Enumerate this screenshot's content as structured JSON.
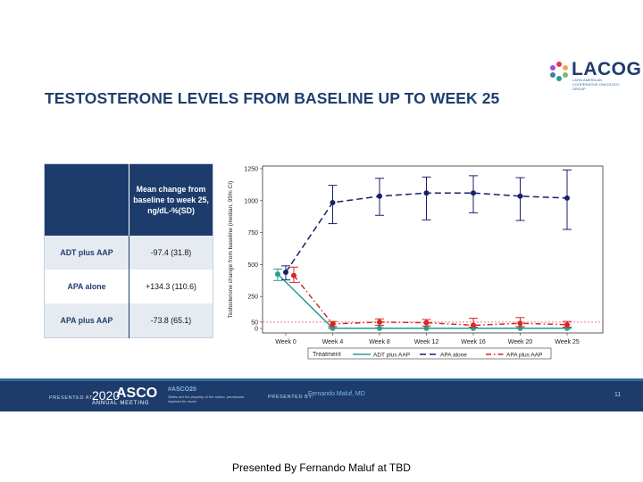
{
  "logo": {
    "text": "LACOG",
    "sub": "LATIN AMERICAN COOPERATIVE ONCOLOGY GROUP"
  },
  "slide_title": "TESTOSTERONE LEVELS FROM BASELINE UP TO WEEK 25",
  "summary_table": {
    "header": "Mean change from baseline to week 25, ng/dL-%(SD)",
    "rows": [
      {
        "label": "ADT plus AAP",
        "value": "-97.4 (31.8)"
      },
      {
        "label": "APA alone",
        "value": "+134.3 (110.6)"
      },
      {
        "label": "APA plus AAP",
        "value": "-73.8 (65.1)"
      }
    ]
  },
  "chart_data": {
    "type": "line",
    "categories": [
      "Week 0",
      "Week 4",
      "Week 8",
      "Week 12",
      "Week 16",
      "Week 20",
      "Week 25"
    ],
    "ylabel": "Testosterone change from baseline (median, 95% CI)",
    "yticks": [
      0,
      50,
      250,
      500,
      750,
      1000,
      1250
    ],
    "ylim": [
      0,
      1250
    ],
    "reference_line": 50,
    "legend_title": "Treatment",
    "legend_position": "bottom",
    "series": [
      {
        "name": "ADT plus AAP",
        "color": "#2a9d8f",
        "dash": "solid",
        "values": [
          425,
          2,
          2,
          2,
          2,
          2,
          2
        ],
        "lower": [
          375,
          0,
          0,
          0,
          0,
          0,
          0
        ],
        "upper": [
          465,
          5,
          5,
          5,
          5,
          5,
          5
        ]
      },
      {
        "name": "APA alone",
        "color": "#1b1f6b",
        "dash": "long",
        "values": [
          440,
          985,
          1035,
          1060,
          1060,
          1035,
          1020
        ],
        "lower": [
          380,
          820,
          885,
          850,
          905,
          845,
          775
        ],
        "upper": [
          490,
          1120,
          1175,
          1185,
          1195,
          1180,
          1240
        ]
      },
      {
        "name": "APA plus AAP",
        "color": "#d62828",
        "dash": "dashdot",
        "values": [
          415,
          35,
          50,
          45,
          25,
          40,
          30
        ],
        "lower": [
          360,
          15,
          25,
          20,
          10,
          15,
          10
        ],
        "upper": [
          480,
          55,
          75,
          70,
          80,
          85,
          55
        ]
      }
    ]
  },
  "footer": {
    "presented_at": "PRESENTED AT:",
    "year": "2020",
    "asco": "ASCO",
    "annual_meeting": "ANNUAL MEETING",
    "hashtag": "#ASCO20",
    "note": "Slides are the property of the author, permission required for reuse.",
    "presented_by": "PRESENTED BY:",
    "presenter": "Fernando Maluf, MD",
    "page": "11"
  },
  "caption": "Presented By Fernando Maluf at TBD"
}
